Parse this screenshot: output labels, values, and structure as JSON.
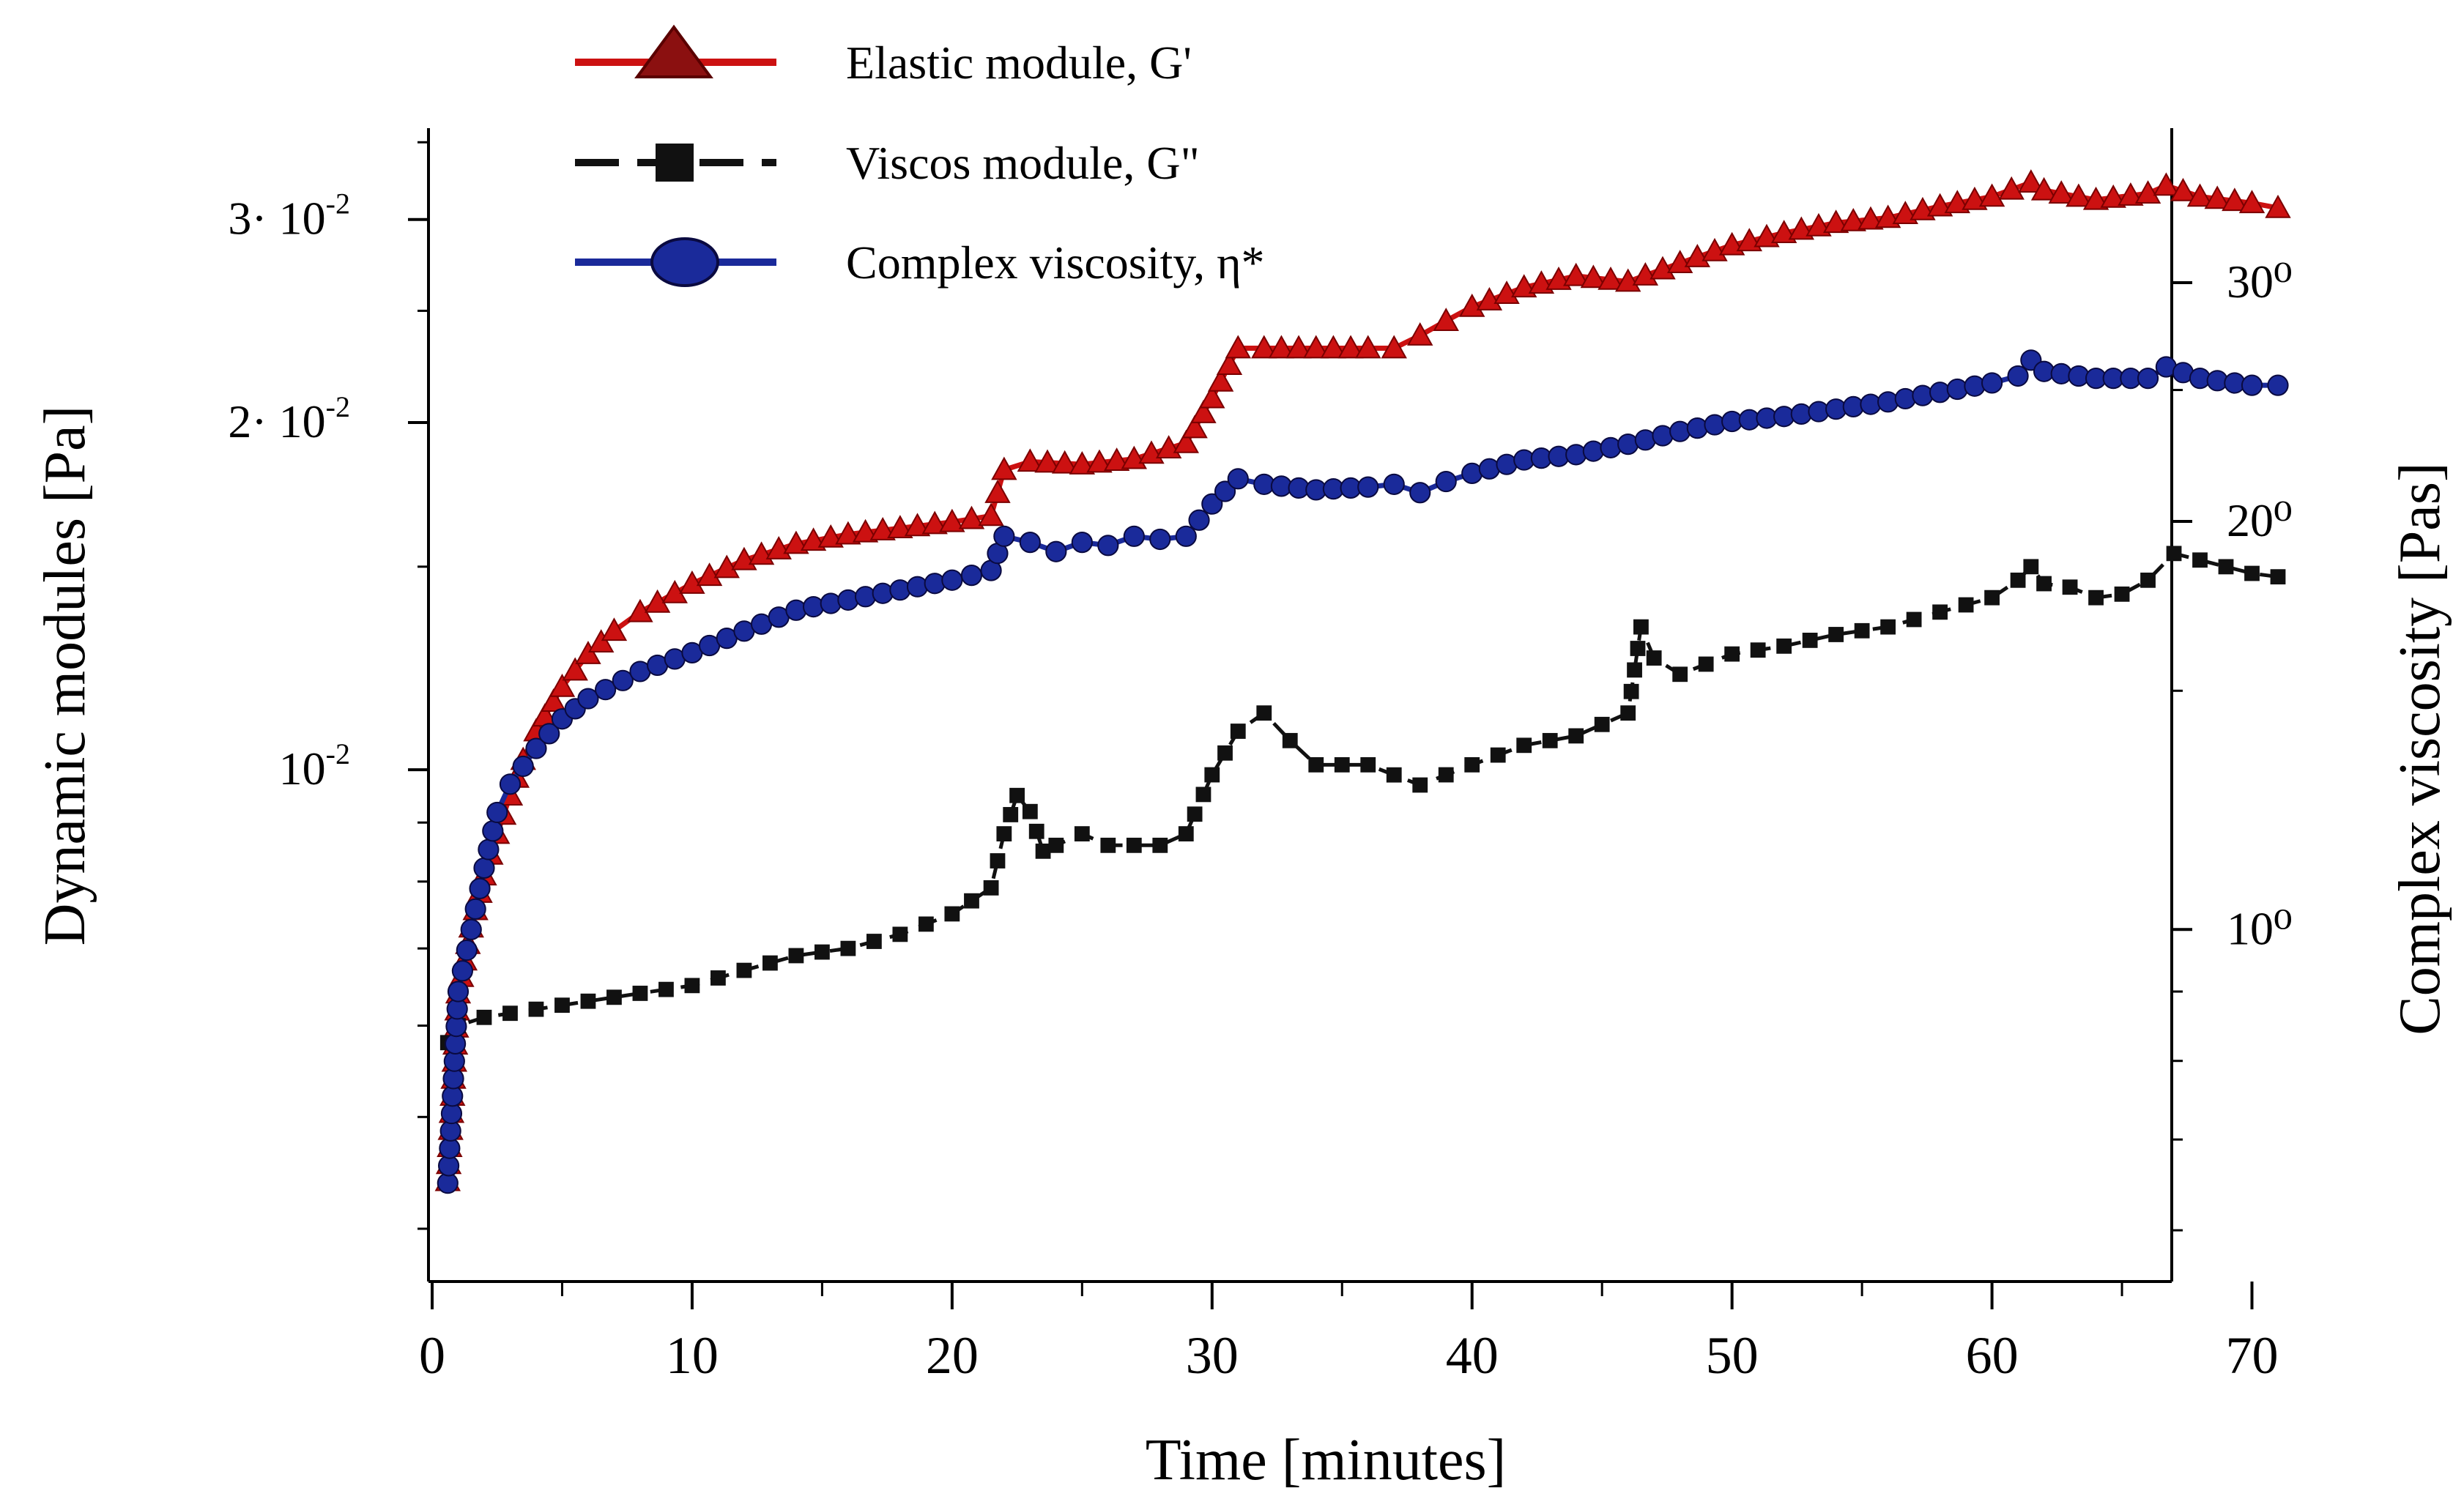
{
  "chart_data": {
    "type": "line",
    "x_axis": {
      "label": "Time [minutes]",
      "range": [
        0,
        71
      ],
      "ticks": [
        0,
        10,
        20,
        30,
        40,
        50,
        60,
        70
      ]
    },
    "y_left": {
      "label": "Dynamic modules [Pa]",
      "scale": "log",
      "range": [
        0.0036,
        0.036
      ],
      "major_ticks": [
        {
          "value": 0.01,
          "label": "10-2"
        },
        {
          "value": 0.02,
          "label": "2· 10-2"
        },
        {
          "value": 0.03,
          "label": "3· 10-2"
        }
      ]
    },
    "y_right": {
      "label": "Complex viscosity [Pas]",
      "scale": "log",
      "range": [
        0.55,
        3.9
      ],
      "major_ticks": [
        {
          "value": 1,
          "label": "10⁰"
        },
        {
          "value": 2,
          "label": "20⁰"
        },
        {
          "value": 3,
          "label": "30⁰"
        }
      ]
    },
    "legend_position": "top-left",
    "series": [
      {
        "name": "Elastic module, G'",
        "axis": "left",
        "color": "#cc1111",
        "marker": "triangle",
        "x": [
          0.6,
          1.0,
          1.5,
          2.0,
          2.5,
          3.0,
          3.5,
          4.0,
          5.0,
          6.0,
          7.0,
          8.0,
          10.0,
          12.0,
          14.0,
          16.0,
          18.0,
          20.0,
          21.5,
          22.0,
          23.0,
          25.0,
          27.0,
          29.0,
          30.0,
          31.0,
          32.0,
          34.0,
          36.0,
          37.0,
          38.0,
          39.0,
          40.0,
          42.0,
          44.0,
          46.0,
          48.0,
          50.0,
          52.0,
          54.0,
          56.0,
          58.0,
          60.0,
          61.5,
          62.0,
          64.0,
          66.0,
          66.7,
          68.0,
          70.0,
          71.0
        ],
        "values": [
          0.0044,
          0.0064,
          0.0073,
          0.0081,
          0.0088,
          0.0095,
          0.0102,
          0.0108,
          0.0118,
          0.0126,
          0.0132,
          0.0137,
          0.0145,
          0.0152,
          0.0157,
          0.016,
          0.0162,
          0.0164,
          0.0166,
          0.0182,
          0.0185,
          0.0184,
          0.0186,
          0.0192,
          0.021,
          0.0232,
          0.0232,
          0.0232,
          0.0232,
          0.0232,
          0.0238,
          0.0245,
          0.0252,
          0.0262,
          0.0268,
          0.0265,
          0.0275,
          0.0285,
          0.0292,
          0.0298,
          0.0301,
          0.0308,
          0.0314,
          0.0323,
          0.0318,
          0.0312,
          0.0316,
          0.0321,
          0.0314,
          0.031,
          0.0307
        ]
      },
      {
        "name": "Viscos module, G\"",
        "axis": "left",
        "color": "#111111",
        "marker": "square",
        "x": [
          0.6,
          1.0,
          2.0,
          4.0,
          6.0,
          8.0,
          10.0,
          12.0,
          14.0,
          16.0,
          18.0,
          20.0,
          21.5,
          22.0,
          22.5,
          23.0,
          23.5,
          24.0,
          25.0,
          26.0,
          27.0,
          28.0,
          29.0,
          30.0,
          31.0,
          32.0,
          33.0,
          34.0,
          36.0,
          38.0,
          39.0,
          40.0,
          42.0,
          44.0,
          46.0,
          46.5,
          47.0,
          48.0,
          50.0,
          52.0,
          54.0,
          56.0,
          58.0,
          60.0,
          61.0,
          61.5,
          62.0,
          63.0,
          64.0,
          65.0,
          66.0,
          67.0,
          68.0,
          70.0,
          71.0
        ],
        "values": [
          0.0058,
          0.006,
          0.0061,
          0.0062,
          0.0063,
          0.0064,
          0.0065,
          0.0067,
          0.0069,
          0.007,
          0.0072,
          0.0075,
          0.0079,
          0.0088,
          0.0095,
          0.0092,
          0.0085,
          0.0086,
          0.0088,
          0.0086,
          0.0086,
          0.0086,
          0.0088,
          0.0099,
          0.0108,
          0.0112,
          0.0106,
          0.0101,
          0.0101,
          0.0097,
          0.0099,
          0.0101,
          0.0105,
          0.0107,
          0.0112,
          0.0133,
          0.0125,
          0.0121,
          0.0126,
          0.0128,
          0.0131,
          0.0133,
          0.0137,
          0.0141,
          0.0146,
          0.015,
          0.0145,
          0.0144,
          0.0141,
          0.0142,
          0.0146,
          0.0154,
          0.0152,
          0.0148,
          0.0147
        ]
      },
      {
        "name": "Complex viscosity, η*",
        "axis": "right",
        "color": "#1a2a9a",
        "marker": "circle",
        "x": [
          0.6,
          1.0,
          1.5,
          2.0,
          2.5,
          3.0,
          4.0,
          5.0,
          6.0,
          8.0,
          10.0,
          12.0,
          14.0,
          16.0,
          18.0,
          20.0,
          21.5,
          22.0,
          23.0,
          24.0,
          25.0,
          26.0,
          27.0,
          28.0,
          29.0,
          30.0,
          31.0,
          32.0,
          34.0,
          36.0,
          37.0,
          38.0,
          39.0,
          40.0,
          42.0,
          44.0,
          46.0,
          48.0,
          50.0,
          52.0,
          54.0,
          56.0,
          58.0,
          60.0,
          61.0,
          61.5,
          62.0,
          64.0,
          66.0,
          66.7,
          68.0,
          70.0,
          71.0
        ],
        "values": [
          0.65,
          0.9,
          1.0,
          1.11,
          1.22,
          1.28,
          1.36,
          1.43,
          1.48,
          1.55,
          1.6,
          1.66,
          1.72,
          1.75,
          1.78,
          1.81,
          1.84,
          1.95,
          1.93,
          1.9,
          1.93,
          1.92,
          1.95,
          1.94,
          1.95,
          2.06,
          2.15,
          2.13,
          2.11,
          2.12,
          2.13,
          2.1,
          2.14,
          2.17,
          2.22,
          2.24,
          2.28,
          2.33,
          2.37,
          2.39,
          2.42,
          2.45,
          2.49,
          2.53,
          2.56,
          2.63,
          2.58,
          2.55,
          2.55,
          2.6,
          2.55,
          2.52,
          2.52
        ]
      }
    ]
  }
}
